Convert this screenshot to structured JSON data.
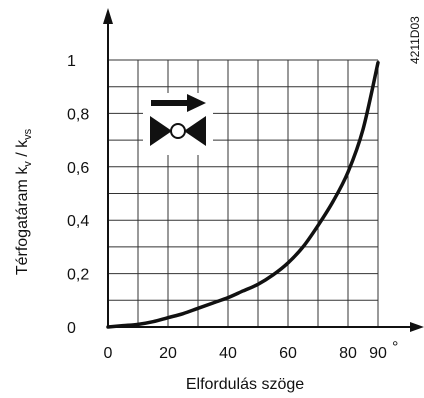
{
  "chart_data": {
    "type": "line",
    "title": "",
    "xlabel": "Elfordulás szöge",
    "ylabel_main": "Térfogatáram k",
    "ylabel_sub1": "v",
    "ylabel_mid": " / k",
    "ylabel_sub2": "vs",
    "x_unit": "°",
    "xlim": [
      0,
      90
    ],
    "ylim": [
      0,
      1
    ],
    "x_ticks": [
      {
        "value": 0,
        "label": "0"
      },
      {
        "value": 20,
        "label": "20"
      },
      {
        "value": 40,
        "label": "40"
      },
      {
        "value": 60,
        "label": "60"
      },
      {
        "value": 80,
        "label": "80"
      },
      {
        "value": 90,
        "label": "90"
      }
    ],
    "y_ticks": [
      {
        "value": 0,
        "label": "0"
      },
      {
        "value": 0.2,
        "label": "0,2"
      },
      {
        "value": 0.4,
        "label": "0,4"
      },
      {
        "value": 0.6,
        "label": "0,6"
      },
      {
        "value": 0.8,
        "label": "0,8"
      },
      {
        "value": 1,
        "label": "1"
      }
    ],
    "grid": true,
    "x_grid_step": 10,
    "y_grid_step": 0.1,
    "series": [
      {
        "x": [
          0,
          5,
          10,
          15,
          20,
          25,
          30,
          35,
          40,
          45,
          50,
          55,
          60,
          65,
          70,
          75,
          80,
          85,
          90
        ],
        "y": [
          0,
          0.005,
          0.01,
          0.02,
          0.035,
          0.05,
          0.07,
          0.09,
          0.11,
          0.135,
          0.16,
          0.195,
          0.24,
          0.3,
          0.38,
          0.47,
          0.58,
          0.74,
          0.99
        ]
      }
    ],
    "figure_code": "4211D03",
    "colors": {
      "curve": "#111111",
      "grid": "#333333",
      "axis": "#111111"
    }
  },
  "valve_icon": {
    "name": "valve-symbol-icon",
    "arrow": "arrow-right-icon"
  }
}
